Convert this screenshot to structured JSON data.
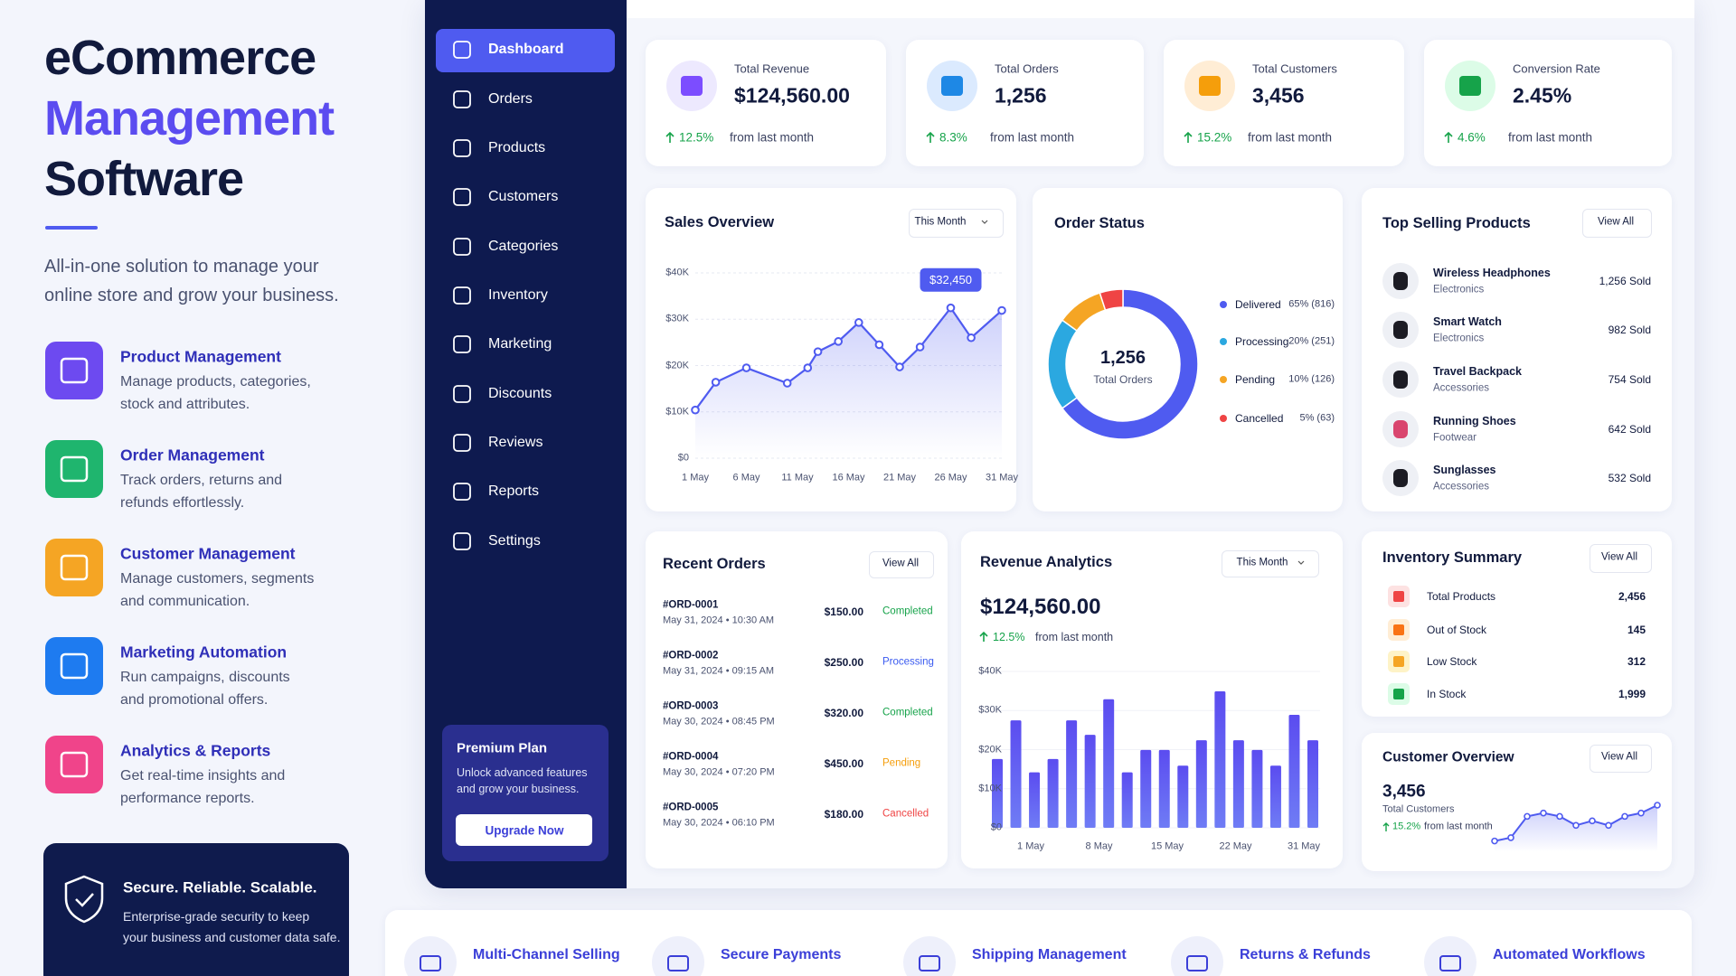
{
  "hero": {
    "title": [
      "eCommerce",
      "Management",
      "Software"
    ],
    "subtitle": [
      "All-in-one solution to manage your",
      "online store and grow your business."
    ],
    "features": [
      {
        "title": "Product Management",
        "desc": [
          "Manage products, categories,",
          "stock and attributes."
        ]
      },
      {
        "title": "Order Management",
        "desc": [
          "Track orders, returns and",
          "refunds effortlessly."
        ]
      },
      {
        "title": "Customer Management",
        "desc": [
          "Manage customers, segments",
          "and communication."
        ]
      },
      {
        "title": "Marketing Automation",
        "desc": [
          "Run campaigns, discounts",
          "and promotional offers."
        ]
      },
      {
        "title": "Analytics & Reports",
        "desc": [
          "Get real-time insights and",
          "performance reports."
        ]
      }
    ],
    "security": {
      "title": "Secure. Reliable. Scalable.",
      "desc": [
        "Enterprise-grade security to keep",
        "your business and customer data safe."
      ]
    }
  },
  "sidebar": {
    "nav": [
      "Dashboard",
      "Orders",
      "Products",
      "Customers",
      "Categories",
      "Inventory",
      "Marketing",
      "Discounts",
      "Reviews",
      "Reports",
      "Settings"
    ],
    "premium": {
      "title": "Premium Plan",
      "desc": [
        "Unlock advanced features",
        "and grow your business."
      ],
      "button": "Upgrade Now"
    }
  },
  "stats": [
    {
      "label": "Total Revenue",
      "value": "$124,560.00",
      "change": "12.5%",
      "note": "from last month"
    },
    {
      "label": "Total Orders",
      "value": "1,256",
      "change": "8.3%",
      "note": "from last month"
    },
    {
      "label": "Total Customers",
      "value": "3,456",
      "change": "15.2%",
      "note": "from last month"
    },
    {
      "label": "Conversion Rate",
      "value": "2.45%",
      "change": "4.6%",
      "note": "from last month"
    }
  ],
  "sales_overview": {
    "type": "line",
    "title": "Sales Overview",
    "filter": "This Month",
    "color": "#4f5bf0",
    "x": [
      1,
      3,
      6,
      10,
      12,
      13,
      15,
      17,
      19,
      21,
      23,
      26,
      28,
      31
    ],
    "values": [
      10400,
      16400,
      19500,
      16200,
      19500,
      23000,
      25200,
      29300,
      24500,
      19700,
      24000,
      32450,
      26000,
      31900
    ],
    "value_labels": [
      null,
      null,
      null,
      null,
      null,
      null,
      null,
      null,
      null,
      null,
      null,
      "$32,450",
      null,
      null
    ],
    "xlim": [
      1,
      31
    ],
    "xticks": [
      {
        "value": 1,
        "label": "1 May"
      },
      {
        "value": 6,
        "label": "6 May"
      },
      {
        "value": 11,
        "label": "11 May"
      },
      {
        "value": 16,
        "label": "16 May"
      },
      {
        "value": 21,
        "label": "21 May"
      },
      {
        "value": 26,
        "label": "26 May"
      },
      {
        "value": 31,
        "label": "31 May"
      }
    ],
    "ylim": [
      0,
      40000
    ],
    "yticks": [
      {
        "value": 0,
        "label": "$0"
      },
      {
        "value": 10000,
        "label": "$10K"
      },
      {
        "value": 20000,
        "label": "$20K"
      },
      {
        "value": 30000,
        "label": "$30K"
      },
      {
        "value": 40000,
        "label": "$40K"
      }
    ],
    "grid": true
  },
  "order_status": {
    "type": "pie",
    "title": "Order Status",
    "center_value": "1,256",
    "center_label": "Total Orders",
    "categories": [
      "Delivered",
      "Processing",
      "Pending",
      "Cancelled"
    ],
    "values": [
      65,
      20,
      10,
      5
    ],
    "value_labels": [
      "65% (816)",
      "20% (251)",
      "10% (126)",
      "5% (63)"
    ],
    "colors": [
      "#4f5bf0",
      "#2ba8e0",
      "#f5a524",
      "#ef4444"
    ]
  },
  "top_products": {
    "title": "Top Selling Products",
    "action": "View All",
    "items": [
      {
        "name": "Wireless Headphones",
        "category": "Electronics",
        "sold": "1,256 Sold"
      },
      {
        "name": "Smart Watch",
        "category": "Electronics",
        "sold": "982 Sold"
      },
      {
        "name": "Travel Backpack",
        "category": "Accessories",
        "sold": "754 Sold"
      },
      {
        "name": "Running Shoes",
        "category": "Footwear",
        "sold": "642 Sold"
      },
      {
        "name": "Sunglasses",
        "category": "Accessories",
        "sold": "532 Sold"
      }
    ]
  },
  "recent_orders": {
    "title": "Recent Orders",
    "action": "View All",
    "rows": [
      {
        "id": "#ORD-0001",
        "date": "May 31, 2024 • 10:30 AM",
        "amount": "$150.00",
        "status": "Completed",
        "color": "#16a34a"
      },
      {
        "id": "#ORD-0002",
        "date": "May 31, 2024 • 09:15 AM",
        "amount": "$250.00",
        "status": "Processing",
        "color": "#3b5bf0"
      },
      {
        "id": "#ORD-0003",
        "date": "May 30, 2024 • 08:45 PM",
        "amount": "$320.00",
        "status": "Completed",
        "color": "#16a34a"
      },
      {
        "id": "#ORD-0004",
        "date": "May 30, 2024 • 07:20 PM",
        "amount": "$450.00",
        "status": "Pending",
        "color": "#f59e0b"
      },
      {
        "id": "#ORD-0005",
        "date": "May 30, 2024 • 06:10 PM",
        "amount": "$180.00",
        "status": "Cancelled",
        "color": "#ef4444"
      }
    ]
  },
  "revenue_analytics": {
    "type": "bar",
    "title": "Revenue Analytics",
    "filter": "This Month",
    "total": "$124,560.00",
    "change": "12.5%",
    "note": "from last month",
    "color": "#5b4cf0",
    "values": [
      17600,
      27500,
      14200,
      17600,
      27500,
      23800,
      32900,
      14200,
      19900,
      19900,
      15900,
      22400,
      34900,
      22400,
      19900,
      15900,
      28900,
      22400
    ],
    "xlabels": [
      "1 May",
      "8 May",
      "15 May",
      "22 May",
      "31 May"
    ],
    "ylim": [
      0,
      40000
    ],
    "yticks": [
      {
        "value": 0,
        "label": "$0"
      },
      {
        "value": 10000,
        "label": "$10K"
      },
      {
        "value": 20000,
        "label": "$20K"
      },
      {
        "value": 30000,
        "label": "$30K"
      },
      {
        "value": 40000,
        "label": "$40K"
      }
    ]
  },
  "inventory": {
    "title": "Inventory Summary",
    "action": "View All",
    "rows": [
      {
        "label": "Total Products",
        "value": "2,456"
      },
      {
        "label": "Out of Stock",
        "value": "145"
      },
      {
        "label": "Low Stock",
        "value": "312"
      },
      {
        "label": "In Stock",
        "value": "1,999"
      }
    ]
  },
  "customer_overview": {
    "type": "line",
    "title": "Customer Overview",
    "action": "View All",
    "value": "3,456",
    "label": "Total Customers",
    "change": "15.2%",
    "note": "from last month",
    "color": "#4f5bf0",
    "values": [
      10,
      13,
      32,
      35,
      32,
      24,
      28,
      24,
      32,
      35,
      42
    ]
  },
  "bottom_features": [
    "Multi-Channel Selling",
    "Secure Payments",
    "Shipping Management",
    "Returns & Refunds",
    "Automated Workflows"
  ]
}
